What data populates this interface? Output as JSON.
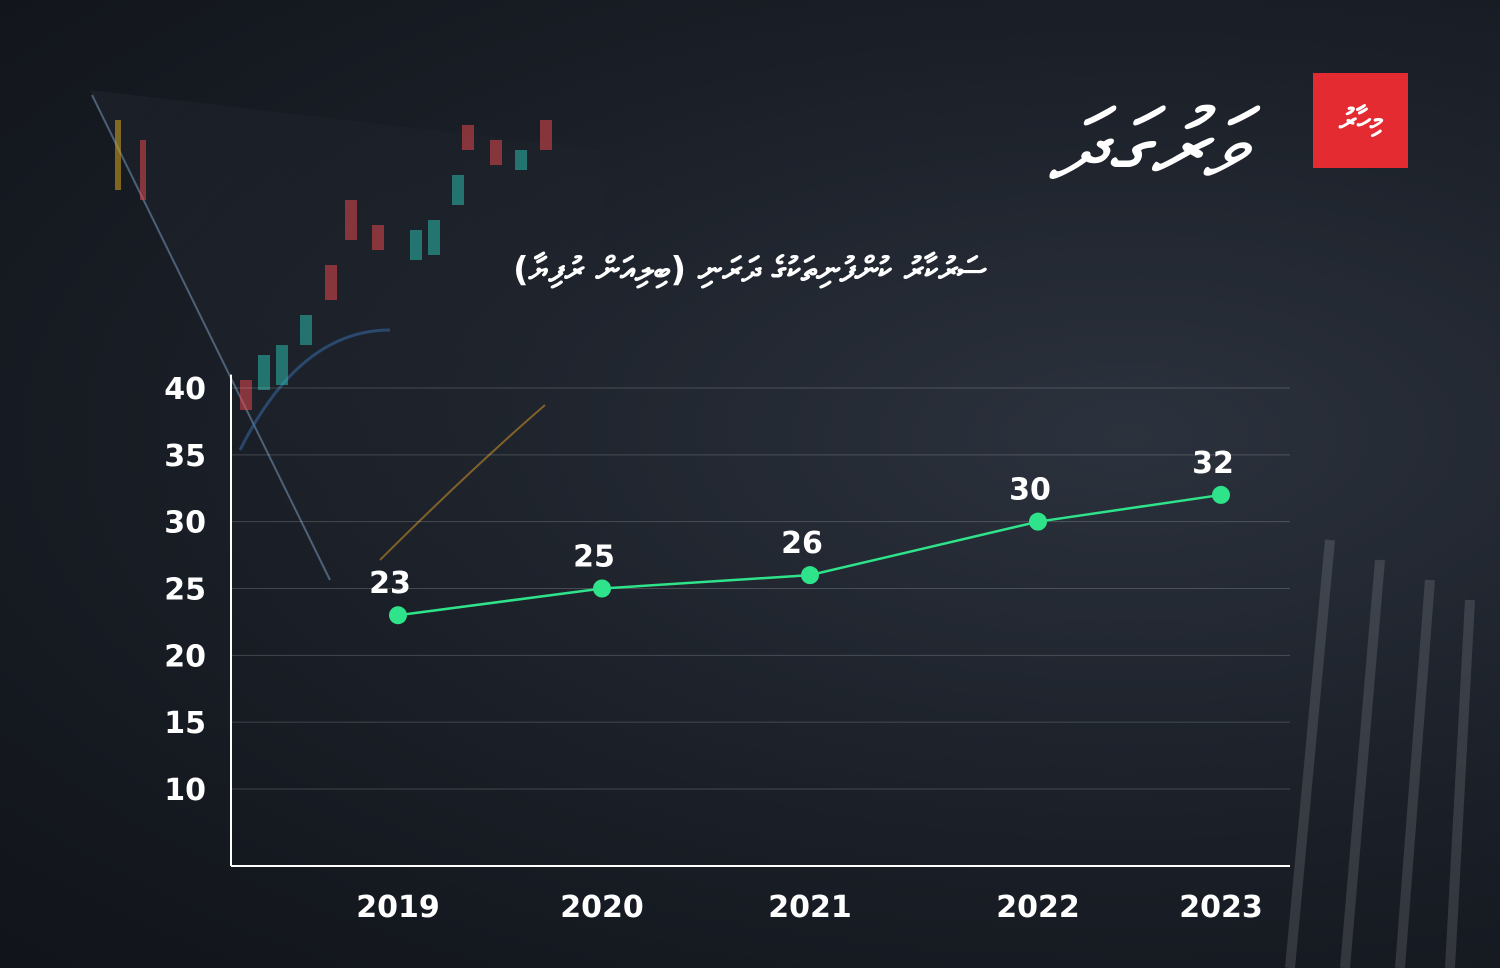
{
  "brand": {
    "wordmark": "ވަރުގަދަ",
    "badge_text": "މިހާރު",
    "badge_color": "#e42b32"
  },
  "chart_data": {
    "type": "line",
    "title": "ސަރުކާރު ކުންފުނިތަކުގެ ދަރަނި (ބިލިއަން ރުފިޔާ)",
    "xlabel": "",
    "ylabel": "",
    "categories": [
      "2019",
      "2020",
      "2021",
      "2022",
      "2023"
    ],
    "series": [
      {
        "values": [
          23,
          25,
          26,
          30,
          32
        ],
        "data_labels": [
          "23",
          "25",
          "26",
          "30",
          "32"
        ]
      }
    ],
    "y_ticks": [
      10,
      15,
      20,
      25,
      30,
      35,
      40
    ],
    "ylim": [
      4,
      41
    ],
    "grid": true,
    "line_color": "#2ee38a",
    "marker_color": "#2ee38a"
  }
}
